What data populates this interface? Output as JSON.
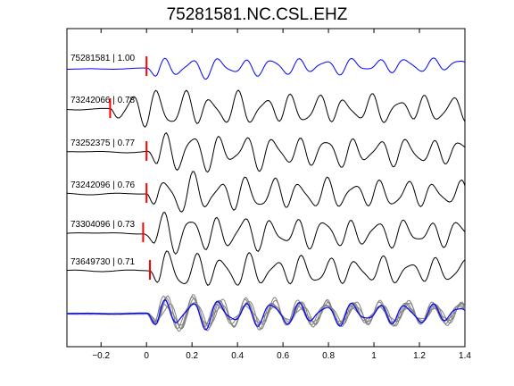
{
  "chart_data": {
    "type": "line",
    "title": "75281581.NC.CSL.EHZ",
    "xlabel": "",
    "ylabel": "",
    "xlim": [
      -0.35,
      1.4
    ],
    "xticks": [
      -0.2,
      0,
      0.2,
      0.4,
      0.6,
      0.8,
      1,
      1.2,
      1.4
    ],
    "xtick_labels": [
      "−0.2",
      "0",
      "0.2",
      "0.4",
      "0.6",
      "0.8",
      "1",
      "1.2",
      "1.4"
    ],
    "grid": false,
    "series": [
      {
        "name": "75281581 | 1.00",
        "pick_time": 0.0,
        "color": "#0000ff"
      },
      {
        "name": "73242066 | 0.78",
        "pick_time": -0.16,
        "color": "#000000"
      },
      {
        "name": "73252375 | 0.77",
        "pick_time": 0.0,
        "color": "#000000"
      },
      {
        "name": "73242096 | 0.76",
        "pick_time": 0.0,
        "color": "#000000"
      },
      {
        "name": "73304096 | 0.73",
        "pick_time": -0.015,
        "color": "#000000"
      },
      {
        "name": "73649730 | 0.71",
        "pick_time": 0.015,
        "color": "#000000"
      }
    ],
    "stack": {
      "colors": {
        "reference": "#0000ff",
        "others": "#808080"
      }
    },
    "pick_marker_color": "#ff0000"
  }
}
